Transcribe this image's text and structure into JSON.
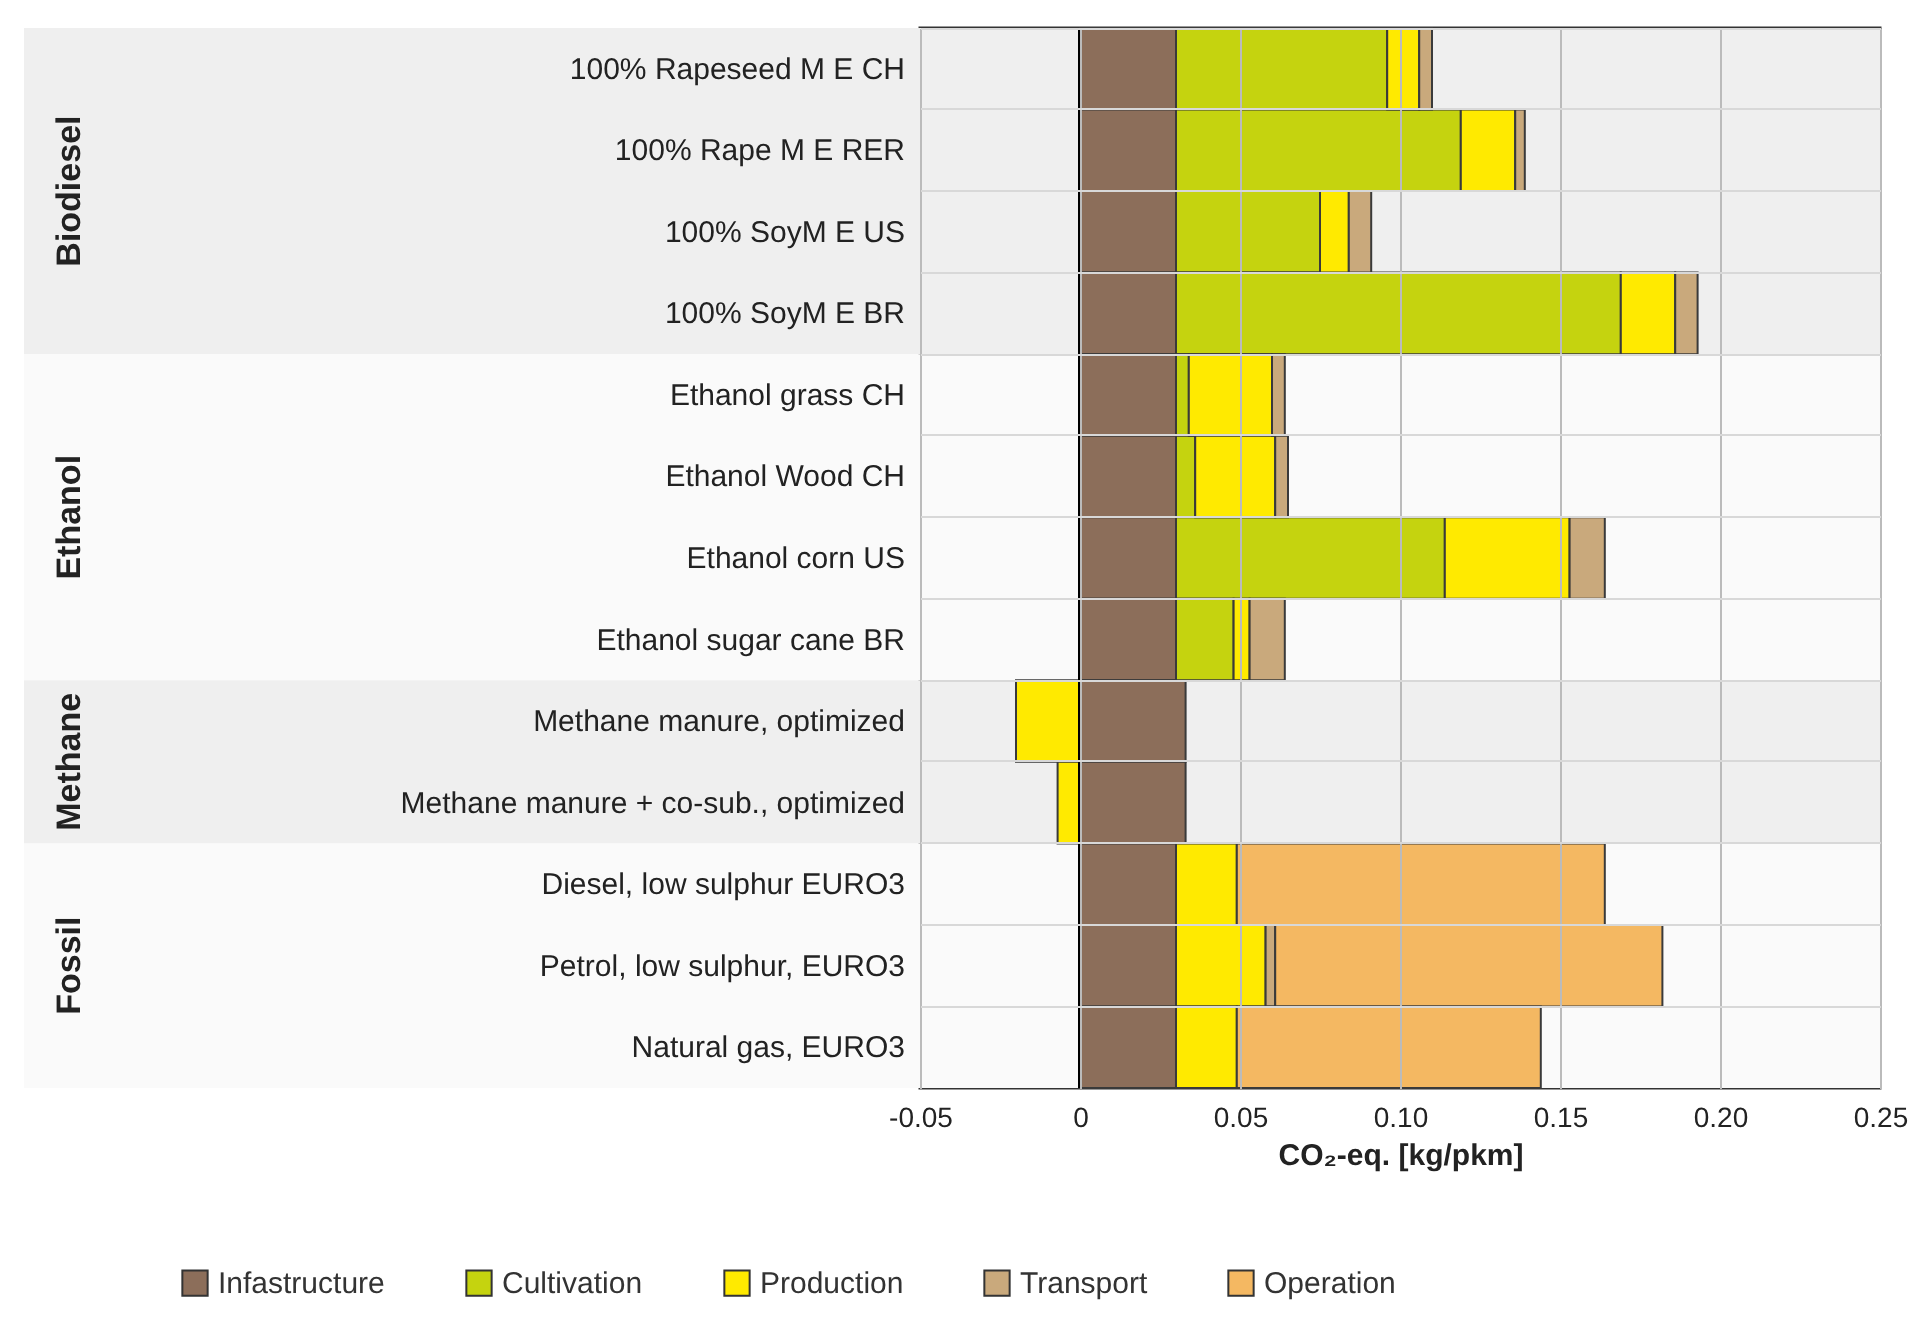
{
  "chart_data": {
    "type": "bar",
    "orientation": "horizontal",
    "stacked": true,
    "categories": [
      "100% Rapeseed M E CH",
      "100% Rape M E RER",
      "100% SoyM E US",
      "100% SoyM E BR",
      "Ethanol grass CH",
      "Ethanol Wood CH",
      "Ethanol corn US",
      "Ethanol sugar cane BR",
      "Methane manure, optimized",
      "Methane manure + co-sub., optimized",
      "Diesel, low sulphur EURO3",
      "Petrol, low sulphur, EURO3",
      "Natural gas, EURO3"
    ],
    "series": [
      {
        "name": "Infastructure",
        "color": "#8c6e5a",
        "values": [
          0.03,
          0.03,
          0.03,
          0.03,
          0.03,
          0.03,
          0.03,
          0.03,
          0.033,
          0.033,
          0.03,
          0.03,
          0.03
        ]
      },
      {
        "name": "Cultivation",
        "color": "#c5d30f",
        "values": [
          0.066,
          0.089,
          0.045,
          0.139,
          0.004,
          0.006,
          0.084,
          0.018,
          null,
          null,
          null,
          null,
          null
        ]
      },
      {
        "name": "Production",
        "color": "#ffea00",
        "values": [
          0.01,
          0.017,
          0.009,
          0.017,
          0.026,
          0.025,
          0.039,
          0.005,
          -0.02,
          -0.007,
          0.019,
          0.028,
          0.019
        ]
      },
      {
        "name": "Transport",
        "color": "#c9a97c",
        "values": [
          0.004,
          0.003,
          0.007,
          0.007,
          0.004,
          0.004,
          0.011,
          0.011,
          null,
          null,
          null,
          0.003,
          null
        ]
      },
      {
        "name": "Operation",
        "color": "#f4b862",
        "values": [
          null,
          null,
          null,
          null,
          null,
          null,
          null,
          null,
          null,
          null,
          0.115,
          0.121,
          0.095
        ]
      }
    ],
    "xlim": [
      -0.05,
      0.25
    ],
    "xticks": [
      -0.05,
      0,
      0.05,
      {
        "value": 0.1,
        "label": "0.10"
      },
      0.15,
      {
        "value": 0.2,
        "label": "0.20"
      },
      0.25
    ],
    "xlabel": "CO₂-eq. [kg/pkm]",
    "bands": [
      {
        "axis": "y",
        "from": "100% Rapeseed M E CH",
        "to": "100% SoyM E BR",
        "label": "Biodiesel",
        "color": "#efefef"
      },
      {
        "axis": "y",
        "from": "Ethanol grass CH",
        "to": "Ethanol sugar cane BR",
        "label": "Ethanol",
        "color": "#fafafa"
      },
      {
        "axis": "y",
        "from": "Methane manure, optimized",
        "to": "Methane manure + co-sub., optimized",
        "label": "Methane",
        "color": "#efefef"
      },
      {
        "axis": "y",
        "from": "Diesel, low sulphur EURO3",
        "to": "Natural gas, EURO3",
        "label": "Fossil",
        "color": "#fafafa"
      }
    ],
    "ref_lines": [
      {
        "axis": "x",
        "value": 0,
        "color": "#000000"
      }
    ],
    "grid": true,
    "legend": "bottom"
  }
}
